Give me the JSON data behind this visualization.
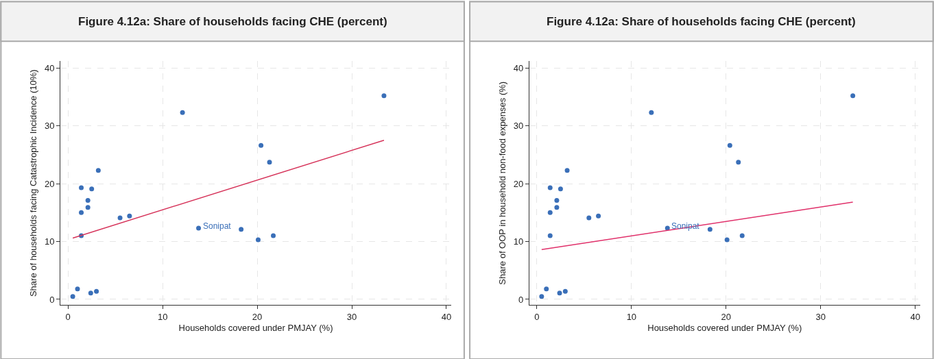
{
  "chart_data": [
    {
      "type": "scatter",
      "title": "Figure 4.12a: Share of households facing CHE (percent)",
      "xlabel": "Households covered under PMJAY (%)",
      "ylabel": "Share of households facing Catastrophic Incidence (10%)",
      "xlim": [
        -0.8,
        40.5
      ],
      "ylim": [
        -1,
        41.2
      ],
      "xticks": [
        0,
        10,
        20,
        30,
        40
      ],
      "yticks": [
        0,
        10,
        20,
        30,
        40
      ],
      "grid": true,
      "series": [
        {
          "marker": "circle",
          "color": "#3a6fb8",
          "x": [
            0.5,
            1.0,
            2.4,
            3.0,
            1.4,
            1.4,
            2.1,
            2.1,
            1.4,
            2.5,
            3.2,
            5.5,
            6.5,
            12.1,
            13.8,
            18.3,
            20.1,
            20.4,
            21.3,
            21.7,
            33.4
          ],
          "values": [
            0.5,
            1.8,
            1.1,
            1.4,
            11.0,
            15.0,
            15.9,
            17.1,
            19.3,
            19.1,
            22.3,
            14.1,
            14.4,
            32.3,
            12.3,
            12.1,
            10.3,
            26.6,
            23.7,
            11.0,
            35.2
          ]
        },
        {
          "type": "line",
          "color": "#d6335a",
          "x": [
            0.5,
            33.4
          ],
          "values": [
            10.6,
            27.5
          ]
        }
      ],
      "annotations": [
        {
          "text": "Sonipat",
          "x": 13.8,
          "y": 12.3
        }
      ]
    },
    {
      "type": "scatter",
      "title": "Figure 4.12a: Share of households facing CHE (percent)",
      "xlabel": "Households covered under PMJAY (%)",
      "ylabel": "Share of OOP in household non-food expenses (%)",
      "xlim": [
        -0.8,
        40.5
      ],
      "ylim": [
        -1,
        41.2
      ],
      "xticks": [
        0,
        10,
        20,
        30,
        40
      ],
      "yticks": [
        0,
        10,
        20,
        30,
        40
      ],
      "grid": true,
      "series": [
        {
          "marker": "circle",
          "color": "#3a6fb8",
          "x": [
            0.5,
            1.0,
            2.4,
            3.0,
            1.4,
            1.4,
            2.1,
            2.1,
            1.4,
            2.5,
            3.2,
            5.5,
            6.5,
            12.1,
            13.8,
            18.3,
            20.1,
            20.4,
            21.3,
            21.7,
            33.4
          ],
          "values": [
            0.5,
            1.8,
            1.1,
            1.4,
            11.0,
            15.0,
            15.9,
            17.1,
            19.3,
            19.1,
            22.3,
            14.1,
            14.4,
            32.3,
            12.3,
            12.1,
            10.3,
            26.6,
            23.7,
            11.0,
            35.2
          ]
        },
        {
          "type": "line",
          "color": "#e0306a",
          "x": [
            0.5,
            33.4
          ],
          "values": [
            8.6,
            16.8
          ]
        }
      ],
      "annotations": [
        {
          "text": "Sonipat",
          "x": 13.8,
          "y": 12.3
        }
      ]
    }
  ]
}
